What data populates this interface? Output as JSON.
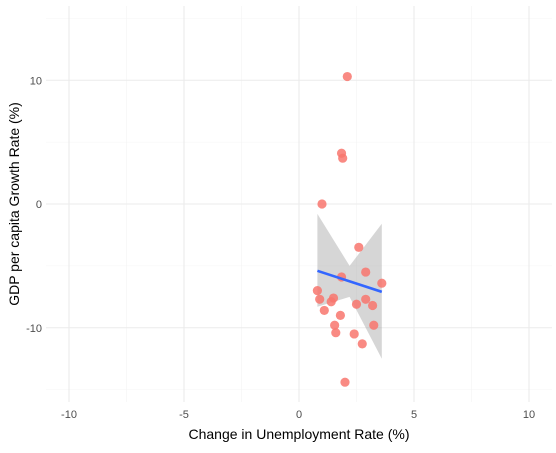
{
  "chart_data": {
    "type": "scatter",
    "title": "",
    "xlabel": "Change in Unemployment Rate (%)",
    "ylabel": "GDP per capita Growth Rate (%)",
    "xlim": [
      -11,
      11
    ],
    "ylim": [
      -16,
      16
    ],
    "x_ticks": [
      -10,
      -5,
      0,
      5,
      10
    ],
    "y_ticks": [
      -10,
      0,
      10
    ],
    "x_tick_labels": [
      "-10",
      "-5",
      "0",
      "5",
      "10"
    ],
    "y_tick_labels": [
      "-10",
      "0",
      "10"
    ],
    "grid": true,
    "background": "#ffffff",
    "grid_major_color": "#ebebeb",
    "grid_minor_color": "#f4f4f4",
    "point_color": "#f8766d",
    "points": [
      {
        "x": 2.1,
        "y": 10.3
      },
      {
        "x": 1.85,
        "y": 4.1
      },
      {
        "x": 1.9,
        "y": 3.7
      },
      {
        "x": 1.0,
        "y": 0.0
      },
      {
        "x": 2.6,
        "y": -3.5
      },
      {
        "x": 2.9,
        "y": -5.5
      },
      {
        "x": 1.85,
        "y": -5.9
      },
      {
        "x": 3.6,
        "y": -6.4
      },
      {
        "x": 0.8,
        "y": -7.0
      },
      {
        "x": 0.9,
        "y": -7.7
      },
      {
        "x": 1.5,
        "y": -7.6
      },
      {
        "x": 1.4,
        "y": -7.9
      },
      {
        "x": 2.9,
        "y": -7.7
      },
      {
        "x": 2.5,
        "y": -8.1
      },
      {
        "x": 3.2,
        "y": -8.2
      },
      {
        "x": 1.1,
        "y": -8.6
      },
      {
        "x": 1.8,
        "y": -9.0
      },
      {
        "x": 1.55,
        "y": -9.8
      },
      {
        "x": 3.25,
        "y": -9.8
      },
      {
        "x": 1.6,
        "y": -10.4
      },
      {
        "x": 2.4,
        "y": -10.5
      },
      {
        "x": 2.75,
        "y": -11.3
      },
      {
        "x": 2.0,
        "y": -14.4
      }
    ],
    "fit": {
      "method": "linear",
      "color": "#3366ff",
      "band_color": "#999999",
      "x": [
        0.8,
        2.2,
        3.6
      ],
      "y": [
        -5.4,
        -6.25,
        -7.1
      ],
      "lower": [
        -8.3,
        -7.5,
        -12.5
      ],
      "upper": [
        -0.8,
        -5.0,
        -1.6
      ]
    }
  }
}
